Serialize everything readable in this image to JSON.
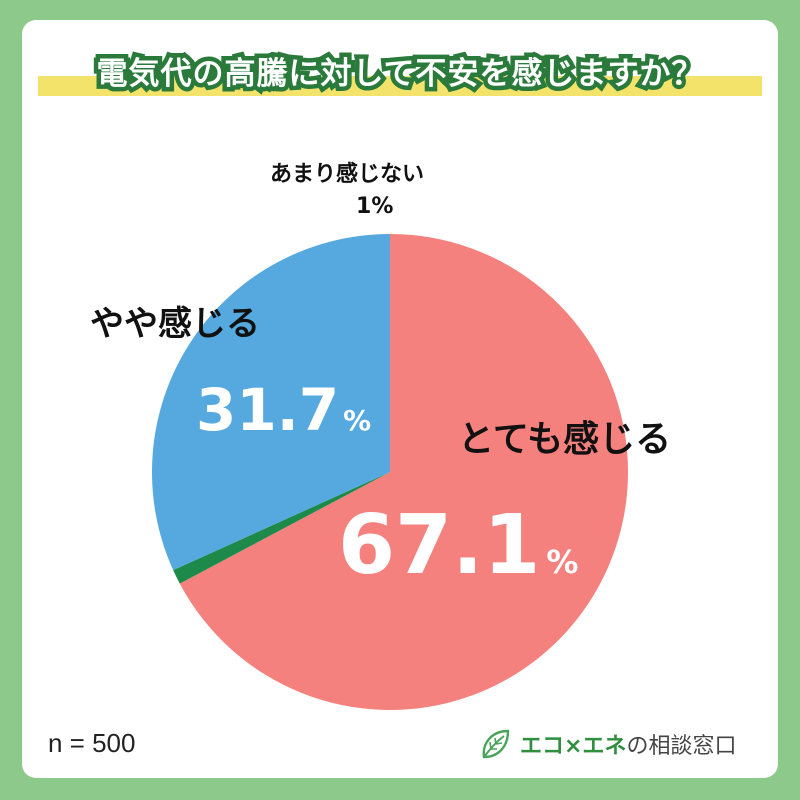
{
  "title": "電気代の高騰に対して不安を感じますか？",
  "chart_data": {
    "type": "pie",
    "slices": [
      {
        "label": "とても感じる",
        "value": 67.1,
        "value_text": "67.1",
        "unit": "%",
        "color": "#f4817e"
      },
      {
        "label": "あまり感じない",
        "value": 1,
        "value_text": "1",
        "unit": "%",
        "color": "#1e8a4a"
      },
      {
        "label": "やや感じる",
        "value": 31.7,
        "value_text": "31.7",
        "unit": "%",
        "color": "#55a9df"
      }
    ]
  },
  "sample": "n = 500",
  "brand": {
    "highlight": "エコ×エネ",
    "rest": "の相談窓口",
    "icon": "leaf-icon"
  }
}
